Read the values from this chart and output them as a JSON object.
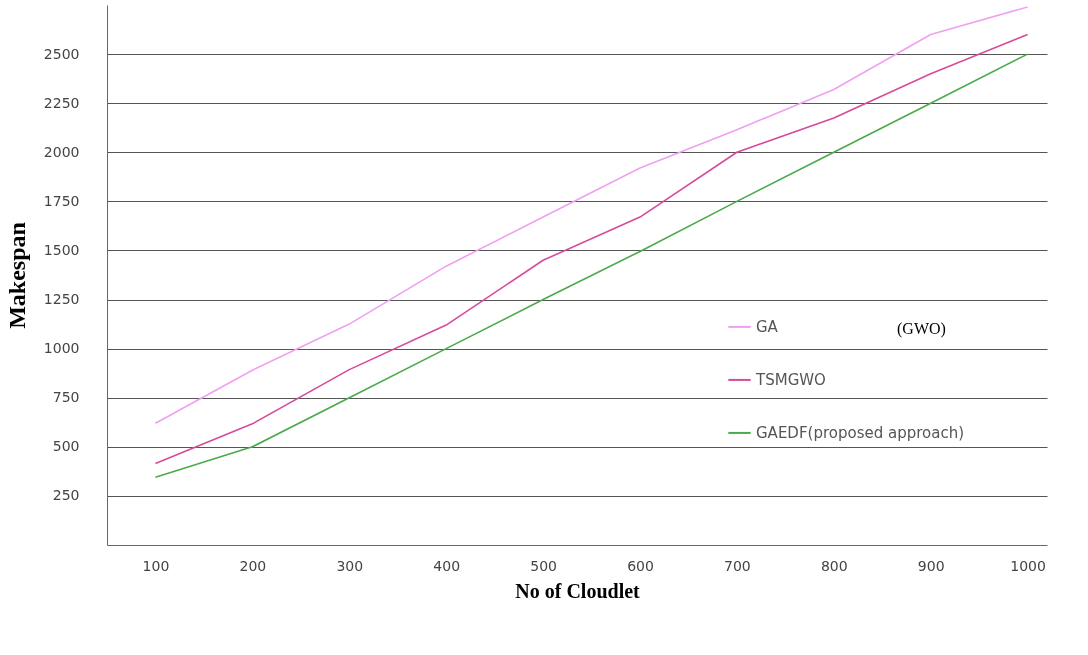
{
  "chart_data": {
    "type": "line",
    "xlabel": "No of Cloudlet",
    "ylabel": "Makespan",
    "x": [
      100,
      200,
      300,
      400,
      500,
      600,
      700,
      800,
      900,
      1000
    ],
    "series": [
      {
        "name": "GA",
        "color": "#f0a0f0",
        "values": [
          620,
          890,
          1125,
          1420,
          1670,
          1920,
          2115,
          2320,
          2600,
          2740
        ]
      },
      {
        "name": "TSMGWO",
        "color": "#d84a9a",
        "values": [
          415,
          617,
          893,
          1120,
          1450,
          1670,
          2000,
          2175,
          2400,
          2600
        ]
      },
      {
        "name": "GAEDF(proposed approach)",
        "color": "#4aaa4a",
        "values": [
          345,
          500,
          750,
          1000,
          1250,
          1495,
          1750,
          2000,
          2250,
          2500
        ]
      }
    ],
    "xlim": [
      50,
      1020
    ],
    "xticks": [
      100,
      200,
      300,
      400,
      500,
      600,
      700,
      800,
      900,
      1000
    ],
    "ylim": [
      0,
      2750
    ],
    "yticks": [
      250,
      500,
      750,
      1000,
      1250,
      1500,
      1750,
      2000,
      2250,
      2500
    ],
    "grid": "y",
    "legend": "right",
    "marker": "none",
    "line_style": "solid",
    "annotations": [
      "(GWO)"
    ]
  }
}
